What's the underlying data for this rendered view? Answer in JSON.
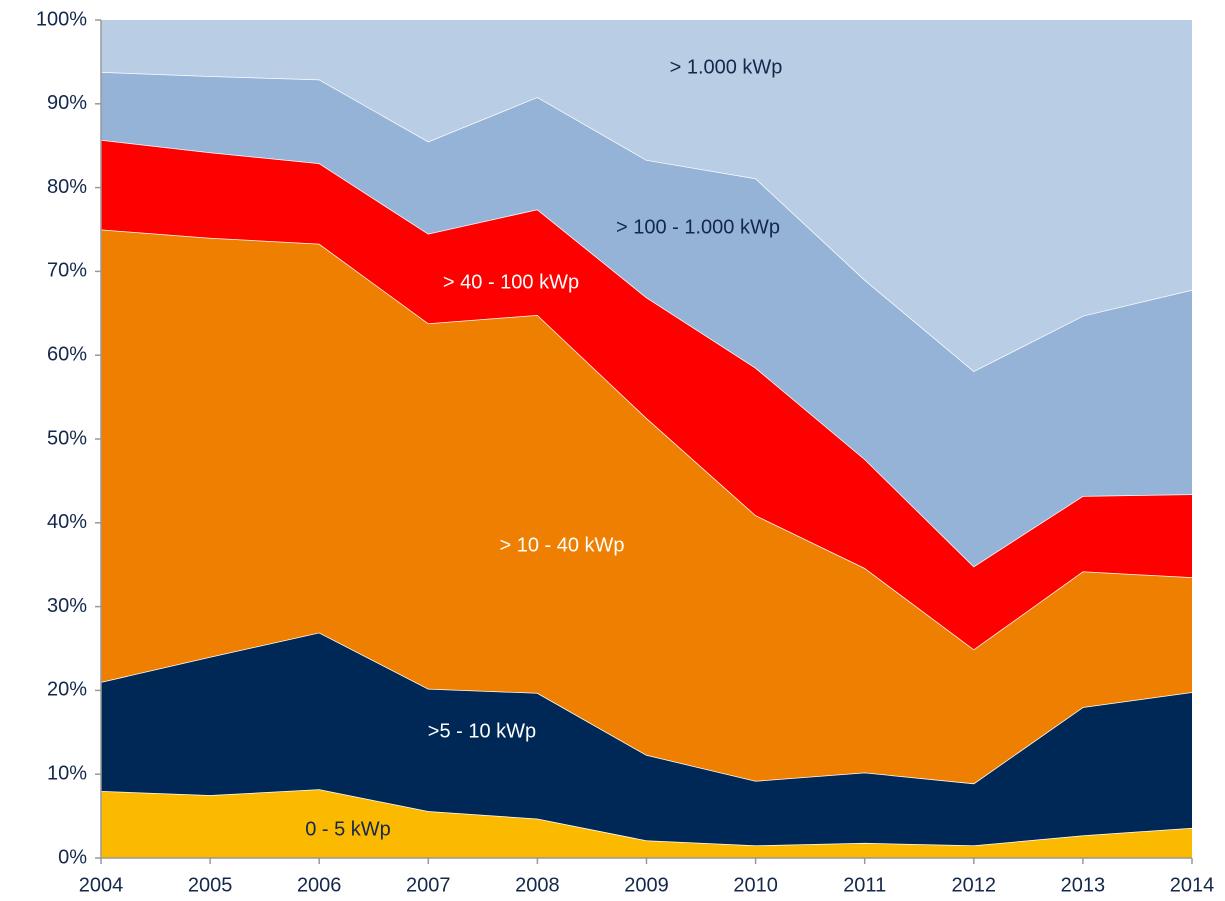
{
  "chart_data": {
    "type": "stacked_area",
    "categories": [
      "2004",
      "2005",
      "2006",
      "2007",
      "2008",
      "2009",
      "2010",
      "2011",
      "2012",
      "2013",
      "2014"
    ],
    "series": [
      {
        "name": "0 - 5 kWp",
        "color": "#fbb900",
        "values": [
          8.0,
          7.5,
          8.2,
          5.6,
          4.7,
          2.1,
          1.5,
          1.8,
          1.5,
          2.7,
          3.6
        ]
      },
      {
        "name": ">5 - 10 kWp",
        "color": "#002856",
        "values": [
          13.0,
          16.5,
          18.7,
          14.6,
          15.0,
          10.2,
          7.7,
          8.4,
          7.4,
          15.3,
          16.2
        ]
      },
      {
        "name": "> 10 - 40 kWp",
        "color": "#ee7f00",
        "values": [
          54.0,
          50.0,
          46.4,
          43.6,
          45.1,
          40.2,
          31.7,
          24.4,
          16.0,
          16.2,
          13.7
        ]
      },
      {
        "name": "> 40 - 100 kWp",
        "color": "#ff0000",
        "values": [
          10.7,
          10.2,
          9.6,
          10.7,
          12.6,
          14.4,
          17.6,
          13.0,
          9.9,
          9.0,
          9.9
        ]
      },
      {
        "name": "> 100 - 1.000 kWp",
        "color": "#95b3d7",
        "values": [
          8.1,
          9.1,
          10.0,
          11.0,
          13.4,
          16.4,
          22.6,
          21.4,
          23.3,
          21.5,
          24.4
        ]
      },
      {
        "name": "> 1.000 kWp",
        "color": "#b9cde5",
        "values": [
          6.2,
          6.7,
          7.1,
          14.5,
          9.2,
          16.7,
          18.9,
          31.0,
          41.9,
          35.3,
          32.2
        ]
      }
    ],
    "ylim": [
      0,
      100
    ],
    "yticks": [
      {
        "value": 0,
        "label": "0%"
      },
      {
        "value": 10,
        "label": "10%"
      },
      {
        "value": 20,
        "label": "20%"
      },
      {
        "value": 30,
        "label": "30%"
      },
      {
        "value": 40,
        "label": "40%"
      },
      {
        "value": 50,
        "label": "50%"
      },
      {
        "value": 60,
        "label": "60%"
      },
      {
        "value": 70,
        "label": "70%"
      },
      {
        "value": 80,
        "label": "80%"
      },
      {
        "value": 90,
        "label": "90%"
      },
      {
        "value": 100,
        "label": "100%"
      }
    ],
    "grid": false
  }
}
